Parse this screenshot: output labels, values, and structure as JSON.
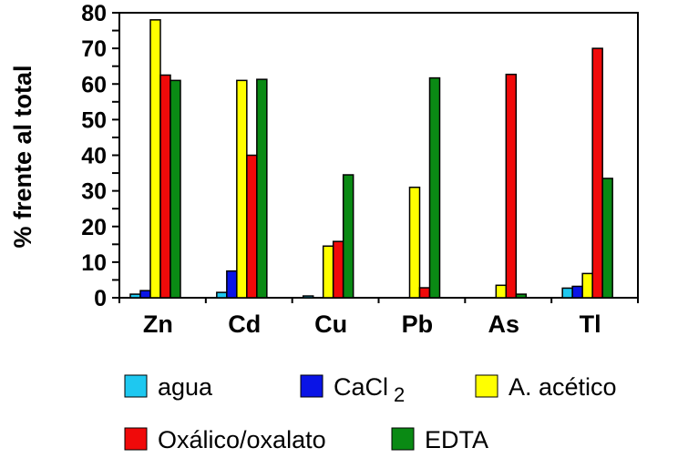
{
  "chart_data": {
    "type": "bar",
    "title": "",
    "xlabel": "",
    "ylabel": "% frente al total",
    "ylim": [
      0,
      80
    ],
    "yticks": [
      "0",
      "10",
      "20",
      "30",
      "40",
      "50",
      "60",
      "70",
      "80"
    ],
    "categories": [
      "Zn",
      "Cd",
      "Cu",
      "Pb",
      "As",
      "Tl"
    ],
    "series": [
      {
        "name": "agua",
        "color": "#1ec8f0",
        "values": [
          1,
          1.5,
          0.5,
          0,
          0,
          2.7
        ]
      },
      {
        "name": "CaCl",
        "subscript": "2",
        "color": "#0a14e6",
        "values": [
          2,
          7.5,
          0,
          0,
          0,
          3.2
        ]
      },
      {
        "name": "A. acético",
        "color": "#ffff00",
        "values": [
          78,
          61,
          14.5,
          31,
          3.5,
          6.8
        ]
      },
      {
        "name": "Oxálico/oxalato",
        "color": "#f00a0a",
        "values": [
          62.5,
          40,
          15.8,
          2.8,
          62.7,
          70
        ]
      },
      {
        "name": "EDTA",
        "color": "#0a8a14",
        "values": [
          61,
          61.3,
          34.5,
          61.7,
          1,
          33.5
        ]
      }
    ],
    "legend_position": "bottom"
  }
}
